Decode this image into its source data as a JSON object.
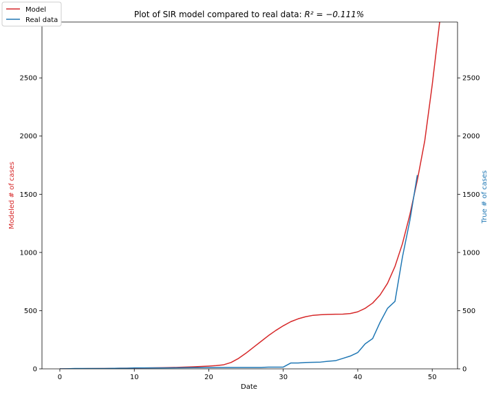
{
  "chart_data": {
    "type": "line",
    "title_prefix": "Plot of SIR model compared to real data: ",
    "title_math": "R² = −0.111%",
    "xlabel": "Date",
    "ylabel_left": "Modeled # of cases",
    "ylabel_right": "True # of cases",
    "xlim": [
      -2.4,
      53.4
    ],
    "ylim": [
      0,
      2980
    ],
    "xticks": [
      0,
      10,
      20,
      30,
      40,
      50
    ],
    "yticks": [
      0,
      500,
      1000,
      1500,
      2000,
      2500
    ],
    "legend_position": "top-left",
    "series": [
      {
        "name": "Model",
        "color": "#d62728",
        "axis": "left",
        "x": [
          0,
          2,
          4,
          6,
          8,
          10,
          12,
          14,
          16,
          18,
          20,
          21,
          22,
          23,
          24,
          25,
          26,
          27,
          28,
          29,
          30,
          31,
          32,
          33,
          34,
          35,
          36,
          37,
          38,
          39,
          40,
          41,
          42,
          43,
          44,
          45,
          46,
          47,
          48,
          49,
          50,
          51
        ],
        "y": [
          0,
          1,
          2,
          3,
          5,
          6,
          8,
          10,
          13,
          18,
          24,
          28,
          35,
          55,
          90,
          135,
          185,
          235,
          285,
          330,
          370,
          405,
          430,
          448,
          460,
          465,
          468,
          469,
          470,
          475,
          490,
          520,
          565,
          635,
          735,
          880,
          1075,
          1325,
          1620,
          1960,
          2440,
          2980
        ]
      },
      {
        "name": "Real data",
        "color": "#1f77b4",
        "axis": "right",
        "x": [
          0,
          1,
          2,
          4,
          6,
          8,
          9,
          10,
          14,
          18,
          22,
          27,
          28,
          30,
          31,
          32,
          33,
          35,
          36,
          37,
          38,
          39,
          40,
          41,
          42,
          43,
          44,
          45,
          46,
          47,
          48
        ],
        "y": [
          0,
          1,
          3,
          3,
          3,
          5,
          5,
          8,
          8,
          10,
          12,
          12,
          15,
          15,
          50,
          50,
          55,
          58,
          65,
          70,
          90,
          110,
          140,
          215,
          260,
          400,
          520,
          580,
          960,
          1275,
          1665
        ]
      }
    ]
  }
}
